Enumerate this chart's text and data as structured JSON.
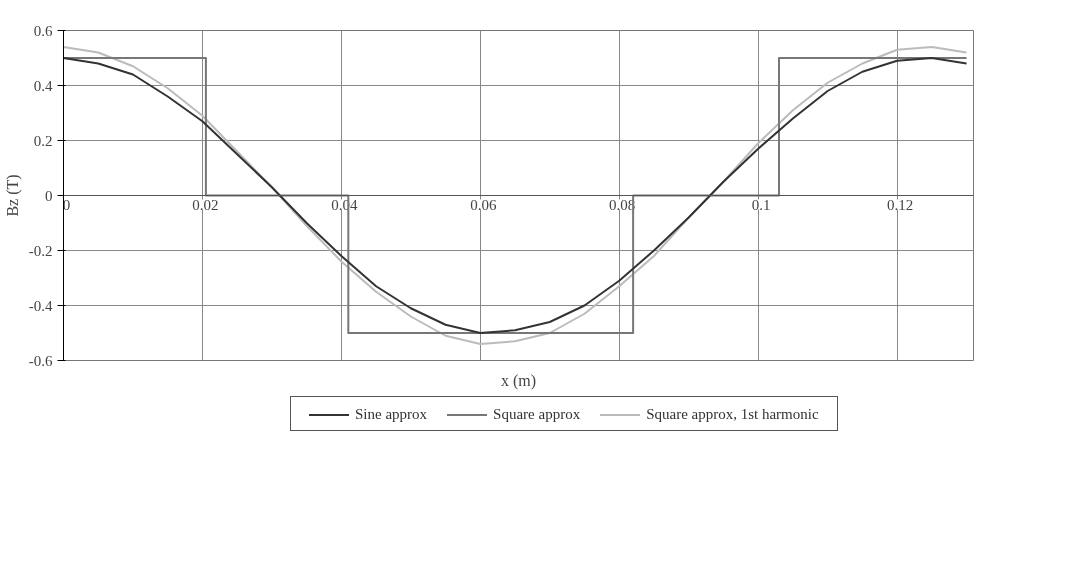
{
  "chart_data": {
    "type": "line",
    "xlabel": "x (m)",
    "ylabel": "Bz (T)",
    "x": [
      0,
      0.005,
      0.01,
      0.015,
      0.02,
      0.025,
      0.03,
      0.035,
      0.04,
      0.045,
      0.05,
      0.055,
      0.06,
      0.065,
      0.07,
      0.075,
      0.08,
      0.085,
      0.09,
      0.095,
      0.1,
      0.105,
      0.11,
      0.115,
      0.12,
      0.125,
      0.13
    ],
    "series": [
      {
        "name": "Sine approx",
        "color": "#333333",
        "values": [
          0.5,
          0.48,
          0.44,
          0.36,
          0.27,
          0.15,
          0.03,
          -0.1,
          -0.22,
          -0.33,
          -0.41,
          -0.47,
          -0.5,
          -0.49,
          -0.46,
          -0.4,
          -0.31,
          -0.2,
          -0.08,
          0.05,
          0.17,
          0.28,
          0.38,
          0.45,
          0.49,
          0.5,
          0.48
        ]
      },
      {
        "name": "Square approx",
        "color": "#777777",
        "x": [
          0,
          0.0205,
          0.0205,
          0.041,
          0.041,
          0.082,
          0.082,
          0.103,
          0.103,
          0.13
        ],
        "values": [
          0.5,
          0.5,
          0,
          0,
          -0.5,
          -0.5,
          0,
          0,
          0.5,
          0.5
        ]
      },
      {
        "name": "Square approx, 1st harmonic",
        "color": "#bbbbbb",
        "values": [
          0.54,
          0.52,
          0.47,
          0.39,
          0.29,
          0.16,
          0.03,
          -0.11,
          -0.24,
          -0.35,
          -0.44,
          -0.51,
          -0.54,
          -0.53,
          -0.5,
          -0.43,
          -0.33,
          -0.22,
          -0.08,
          0.05,
          0.19,
          0.31,
          0.41,
          0.48,
          0.53,
          0.54,
          0.52
        ]
      }
    ],
    "xlim": [
      0,
      0.131
    ],
    "ylim": [
      -0.6,
      0.6
    ],
    "xticks": [
      0,
      0.02,
      0.04,
      0.06,
      0.08,
      0.1,
      0.12
    ],
    "yticks": [
      -0.6,
      -0.4,
      -0.2,
      0,
      0.2,
      0.4,
      0.6
    ],
    "grid": true,
    "legend": "bottom",
    "marker": "none",
    "line_style": "solid"
  }
}
